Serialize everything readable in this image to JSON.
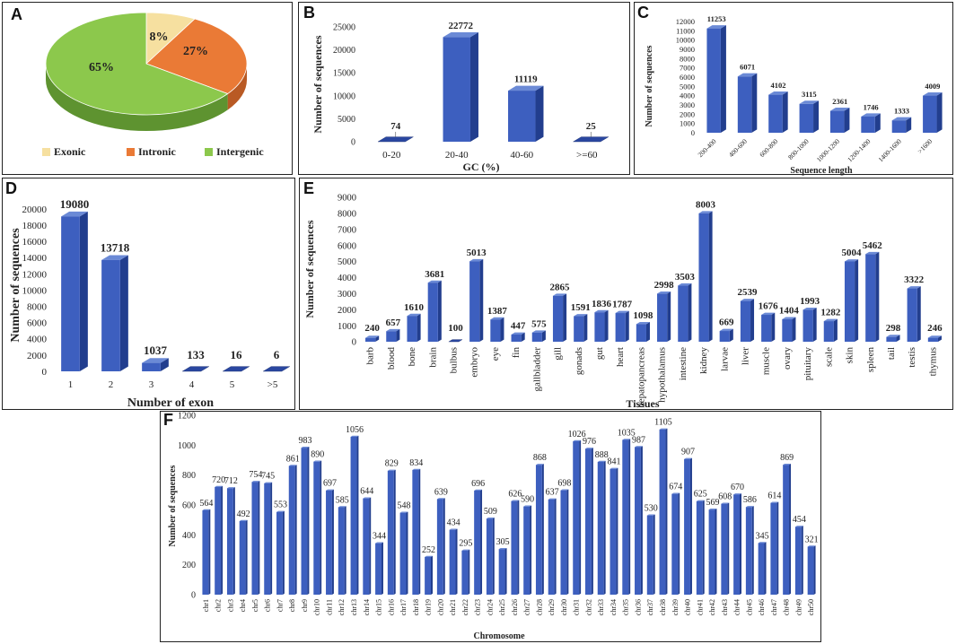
{
  "chart_data": [
    {
      "id": "A",
      "type": "pie",
      "categories": [
        "Exonic",
        "Intronic",
        "Intergenic"
      ],
      "values": [
        8,
        27,
        65
      ],
      "value_labels": [
        "8%",
        "27%",
        "65%"
      ],
      "colors": [
        "#f6e0a0",
        "#ea7a36",
        "#8cc84c"
      ],
      "legend": "bottom"
    },
    {
      "id": "B",
      "type": "bar",
      "categories": [
        "0-20",
        "20-40",
        "40-60",
        ">=60"
      ],
      "values": [
        74,
        22772,
        11119,
        25
      ],
      "value_labels": [
        "74",
        "22772",
        "11119",
        "25"
      ],
      "xlabel": "GC (%)",
      "ylabel": "Number of sequences",
      "ylim": [
        0,
        25000
      ],
      "yticks": [
        0,
        5000,
        10000,
        15000,
        20000,
        25000
      ]
    },
    {
      "id": "C",
      "type": "bar",
      "categories": [
        "200-400",
        "400-600",
        "600-800",
        "800-1000",
        "1000-1200",
        "1200-1400",
        "1400-1600",
        ">1600"
      ],
      "values": [
        11253,
        6071,
        4102,
        3115,
        2361,
        1746,
        1333,
        4009
      ],
      "value_labels": [
        "11253",
        "6071",
        "4102",
        "3115",
        "2361",
        "1746",
        "1333",
        "4009"
      ],
      "xlabel": "Sequence length",
      "ylabel": "Number of sequences",
      "ylim": [
        0,
        12000
      ],
      "yticks": [
        0,
        1000,
        2000,
        3000,
        4000,
        5000,
        6000,
        7000,
        8000,
        9000,
        10000,
        11000,
        12000
      ]
    },
    {
      "id": "D",
      "type": "bar",
      "categories": [
        "1",
        "2",
        "3",
        "4",
        "5",
        ">5"
      ],
      "values": [
        19080,
        13718,
        1037,
        133,
        16,
        6
      ],
      "value_labels": [
        "19080",
        "13718",
        "1037",
        "133",
        "16",
        "6"
      ],
      "xlabel": "Number of exon",
      "ylabel": "Number of sequences",
      "ylim": [
        0,
        20000
      ],
      "yticks": [
        0,
        2000,
        4000,
        6000,
        8000,
        10000,
        12000,
        14000,
        16000,
        18000,
        20000
      ]
    },
    {
      "id": "E",
      "type": "bar",
      "categories": [
        "barb",
        "blood",
        "bone",
        "brain",
        "bulbus",
        "embryo",
        "eye",
        "fin",
        "gallbladder",
        "gill",
        "gonads",
        "gut",
        "heart",
        "hepatopancreas",
        "hypothalamus",
        "intestine",
        "kidney",
        "larvae",
        "liver",
        "muscle",
        "ovary",
        "pituitary",
        "scale",
        "skin",
        "spleen",
        "tail",
        "testis",
        "thymus"
      ],
      "values": [
        240,
        657,
        1610,
        3681,
        100,
        5013,
        1387,
        447,
        575,
        2865,
        1591,
        1836,
        1787,
        1098,
        2998,
        3503,
        8003,
        669,
        2539,
        1676,
        1404,
        1993,
        1282,
        5004,
        5462,
        298,
        3322,
        246
      ],
      "value_labels": [
        "240",
        "657",
        "1610",
        "3681",
        "100",
        "5013",
        "1387",
        "447",
        "575",
        "2865",
        "1591",
        "1836",
        "1787",
        "1098",
        "2998",
        "3503",
        "8003",
        "669",
        "2539",
        "1676",
        "1404",
        "1993",
        "1282",
        "5004",
        "5462",
        "298",
        "3322",
        "246"
      ],
      "xlabel": "Tissues",
      "ylabel": "Number of sequences",
      "ylim": [
        0,
        9000
      ],
      "yticks": [
        0,
        1000,
        2000,
        3000,
        4000,
        5000,
        6000,
        7000,
        8000,
        9000
      ]
    },
    {
      "id": "F",
      "type": "bar",
      "categories": [
        "chr1",
        "chr2",
        "chr3",
        "chr4",
        "chr5",
        "chr6",
        "chr7",
        "chr8",
        "chr9",
        "chr10",
        "chr11",
        "chr12",
        "chr13",
        "chr14",
        "chr15",
        "chr16",
        "chr17",
        "chr18",
        "chr19",
        "chr20",
        "chr21",
        "chr22",
        "chr23",
        "chr24",
        "chr25",
        "chr26",
        "chr27",
        "chr28",
        "chr29",
        "chr30",
        "chr31",
        "chr32",
        "chr33",
        "chr34",
        "chr35",
        "chr36",
        "chr37",
        "chr38",
        "chr39",
        "chr40",
        "chr41",
        "chr42",
        "chr43",
        "chr44",
        "chr45",
        "chr46",
        "chr47",
        "chr48",
        "chr49",
        "chr50"
      ],
      "values": [
        564,
        720,
        712,
        492,
        754,
        745,
        553,
        861,
        983,
        890,
        697,
        585,
        1056,
        644,
        344,
        829,
        548,
        834,
        252,
        639,
        434,
        295,
        696,
        509,
        305,
        626,
        590,
        868,
        637,
        698,
        1026,
        976,
        888,
        841,
        1035,
        987,
        530,
        1105,
        674,
        907,
        625,
        569,
        608,
        670,
        586,
        345,
        614,
        869,
        454,
        321
      ],
      "value_labels": [
        "564",
        "720",
        "712",
        "492",
        "754",
        "745",
        "553",
        "861",
        "983",
        "890",
        "697",
        "585",
        "1056",
        "644",
        "344",
        "829",
        "548",
        "834",
        "252",
        "639",
        "434",
        "295",
        "696",
        "509",
        "305",
        "626",
        "590",
        "868",
        "637",
        "698",
        "1026",
        "976",
        "888",
        "841",
        "1035",
        "987",
        "530",
        "1105",
        "674",
        "907",
        "625",
        "569",
        "608",
        "670",
        "586",
        "345",
        "614",
        "869",
        "454",
        "321"
      ],
      "xlabel": "Chromosome",
      "ylabel": "Number of sequences",
      "ylim": [
        0,
        1200
      ],
      "yticks": [
        0,
        200,
        400,
        600,
        800,
        1000,
        1200
      ]
    }
  ]
}
